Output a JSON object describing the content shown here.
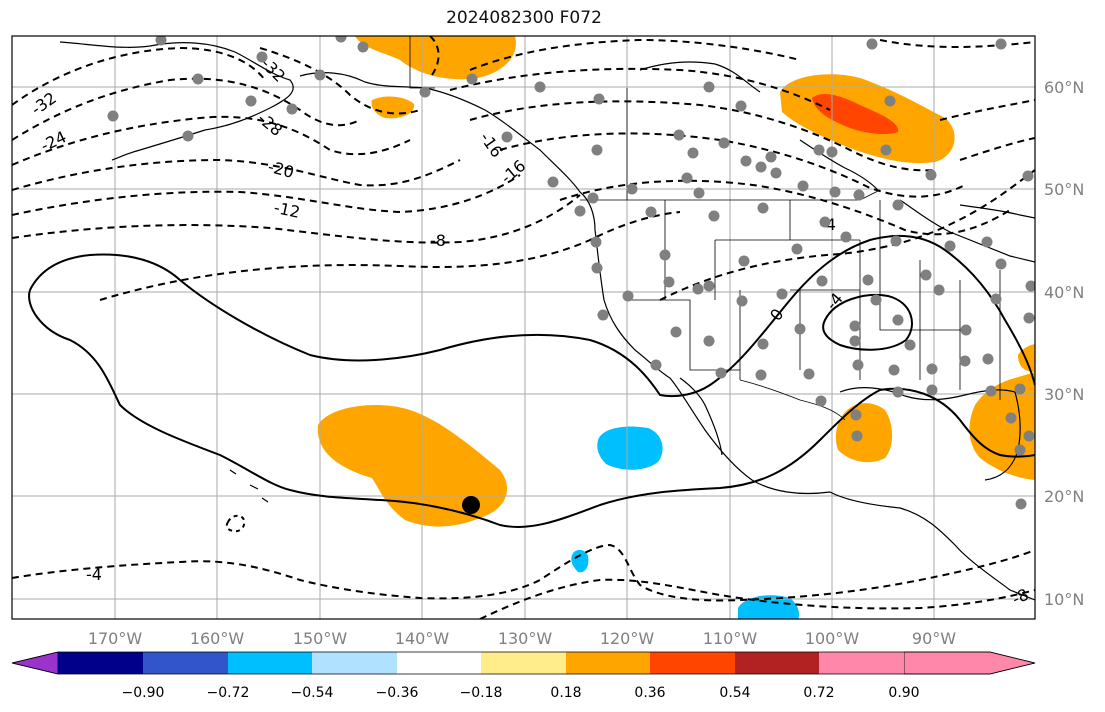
{
  "title": "2024082300 F072",
  "lon_ticks": [
    "170°W",
    "160°W",
    "150°W",
    "140°W",
    "130°W",
    "120°W",
    "110°W",
    "100°W",
    "90°W"
  ],
  "lat_ticks": [
    "60°N",
    "50°N",
    "40°N",
    "30°N",
    "20°N",
    "10°N"
  ],
  "colorbar": {
    "colors": [
      "#9933cc",
      "#00008b",
      "#3355cc",
      "#00bfff",
      "#b0e2ff",
      "#ffffff",
      "#ffec8b",
      "#ffa500",
      "#ff4500",
      "#b22222",
      "#ff88aa"
    ],
    "ticks": [
      "−0.90",
      "−0.72",
      "−0.54",
      "−0.36",
      "−0.18",
      "0.18",
      "0.36",
      "0.54",
      "0.72",
      "0.90"
    ]
  },
  "contour_labels": [
    "-32",
    "-32",
    "-24",
    "-28",
    "-20",
    "-16",
    "-16",
    "-12",
    "-8",
    "-4",
    "-4",
    "0",
    "-4",
    "-8"
  ],
  "colors": {
    "fill_orange": "#ffa500",
    "fill_red": "#ff4500",
    "fill_blue": "#00bfff",
    "station": "#808080"
  }
}
